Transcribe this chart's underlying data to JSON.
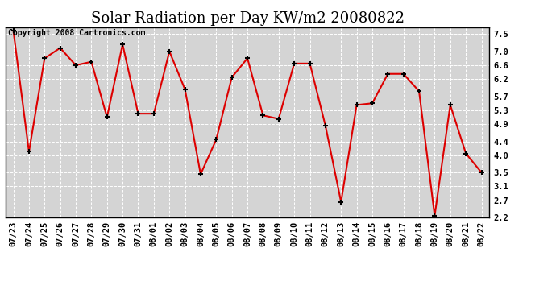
{
  "title": "Solar Radiation per Day KW/m2 20080822",
  "copyright": "Copyright 2008 Cartronics.com",
  "x_labels": [
    "07/23",
    "07/24",
    "07/25",
    "07/26",
    "07/27",
    "07/28",
    "07/29",
    "07/30",
    "07/31",
    "08/01",
    "08/02",
    "08/03",
    "08/04",
    "08/05",
    "08/06",
    "08/07",
    "08/08",
    "08/09",
    "08/10",
    "08/11",
    "08/12",
    "08/13",
    "08/14",
    "08/15",
    "08/16",
    "08/17",
    "08/18",
    "08/19",
    "08/20",
    "08/21",
    "08/22"
  ],
  "y_values": [
    7.6,
    4.1,
    6.8,
    7.1,
    6.6,
    6.7,
    5.1,
    7.2,
    5.2,
    5.2,
    7.0,
    5.9,
    3.45,
    4.45,
    6.25,
    6.8,
    5.15,
    5.05,
    6.65,
    6.65,
    4.85,
    2.65,
    5.45,
    5.5,
    6.35,
    6.35,
    5.85,
    2.25,
    5.45,
    4.05,
    3.5
  ],
  "line_color": "#dd0000",
  "marker": "+",
  "marker_color": "#000000",
  "marker_size": 5,
  "line_width": 1.5,
  "ylim": [
    2.2,
    7.7
  ],
  "yticks": [
    2.2,
    2.7,
    3.1,
    3.5,
    4.0,
    4.4,
    4.9,
    5.3,
    5.7,
    6.2,
    6.6,
    7.0,
    7.5
  ],
  "background_color": "#ffffff",
  "plot_bg_color": "#d4d4d4",
  "grid_color": "#ffffff",
  "title_fontsize": 13,
  "copyright_fontsize": 7,
  "tick_fontsize": 7.5
}
